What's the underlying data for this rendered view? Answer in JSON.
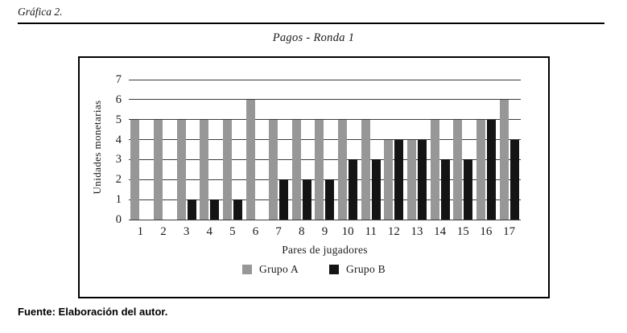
{
  "page": {
    "figure_label": "Gráfica 2.",
    "source_note": "Fuente: Elaboración del autor."
  },
  "chart_data": {
    "type": "bar",
    "title": "Pagos - Ronda 1",
    "xlabel": "Pares de jugadores",
    "ylabel": "Unidades monetarias",
    "categories": [
      "1",
      "2",
      "3",
      "4",
      "5",
      "6",
      "7",
      "8",
      "9",
      "10",
      "11",
      "12",
      "13",
      "14",
      "15",
      "16",
      "17"
    ],
    "series": [
      {
        "name": "Grupo A",
        "color": "#979797",
        "values": [
          5,
          5,
          5,
          5,
          5,
          6,
          5,
          5,
          5,
          5,
          5,
          4,
          4,
          5,
          5,
          5,
          6
        ]
      },
      {
        "name": "Grupo B",
        "color": "#141414",
        "values": [
          0,
          0,
          1,
          1,
          1,
          0,
          2,
          2,
          2,
          3,
          3,
          4,
          4,
          3,
          3,
          5,
          4
        ]
      }
    ],
    "ylim": [
      0,
      7
    ],
    "yticks": [
      0,
      1,
      2,
      3,
      4,
      5,
      6,
      7
    ],
    "grid": true,
    "legend_position": "bottom"
  }
}
